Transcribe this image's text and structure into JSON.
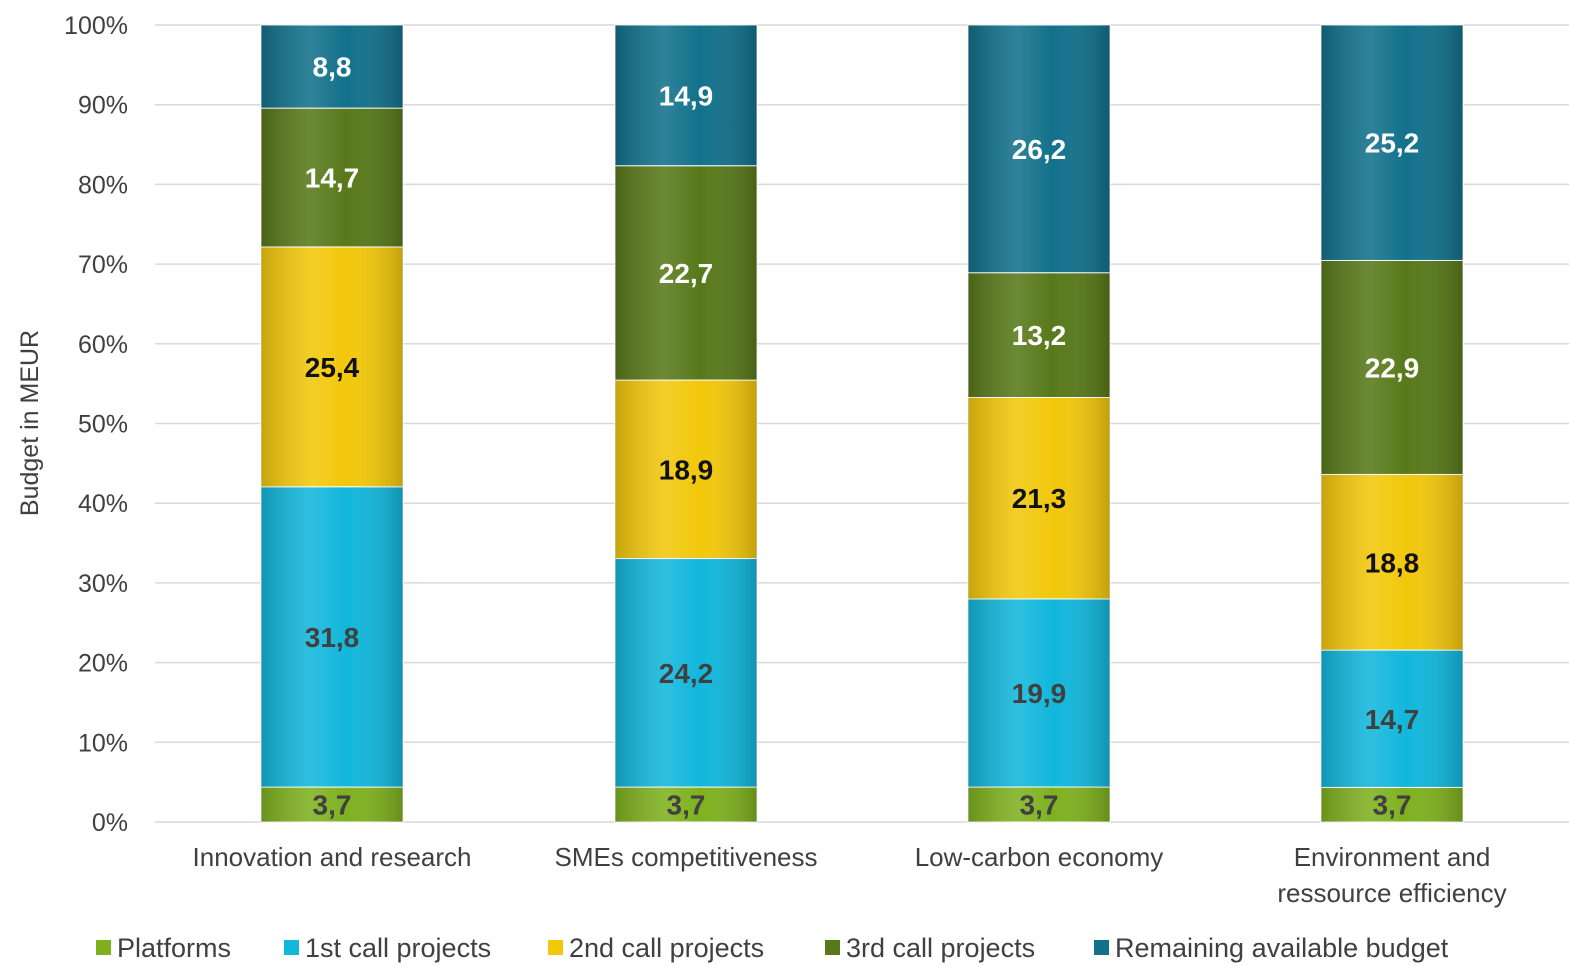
{
  "chart_data": {
    "type": "bar",
    "stacked": true,
    "percent_stacked": true,
    "categories": [
      [
        "Innovation and research"
      ],
      [
        "SMEs competitiveness"
      ],
      [
        "Low-carbon economy"
      ],
      [
        "Environment and",
        "ressource efficiency"
      ]
    ],
    "series": [
      {
        "name": "Platforms",
        "values": [
          3.7,
          3.7,
          3.7,
          3.7
        ],
        "labels": [
          "3,7",
          "3,7",
          "3,7",
          "3,7"
        ],
        "color": "#7fb11f",
        "label_color": "#404040"
      },
      {
        "name": "1st call projects",
        "values": [
          31.8,
          24.2,
          19.9,
          14.7
        ],
        "labels": [
          "31,8",
          "24,2",
          "19,9",
          "14,7"
        ],
        "color": "#12b7dc",
        "label_color": "#404040"
      },
      {
        "name": "2nd call projects",
        "values": [
          25.4,
          18.9,
          21.3,
          18.8
        ],
        "labels": [
          "25,4",
          "18,9",
          "21,3",
          "18,8"
        ],
        "color": "#f2c80c",
        "label_color": "#111111"
      },
      {
        "name": "3rd call projects",
        "values": [
          14.7,
          22.7,
          13.2,
          22.9
        ],
        "labels": [
          "14,7",
          "22,7",
          "13,2",
          "22,9"
        ],
        "color": "#58791a",
        "label_color": "#ffffff"
      },
      {
        "name": "Remaining available budget",
        "values": [
          8.8,
          14.9,
          26.2,
          25.2
        ],
        "labels": [
          "8,8",
          "14,9",
          "26,2",
          "25,2"
        ],
        "color": "#12718b",
        "label_color": "#ffffff"
      }
    ],
    "ylabel": "Budget in MEUR",
    "xlabel": "",
    "ylim": [
      0,
      100
    ],
    "yticks": [
      "0%",
      "10%",
      "20%",
      "30%",
      "40%",
      "50%",
      "60%",
      "70%",
      "80%",
      "90%",
      "100%"
    ],
    "grid": true,
    "legend_position": "bottom"
  }
}
